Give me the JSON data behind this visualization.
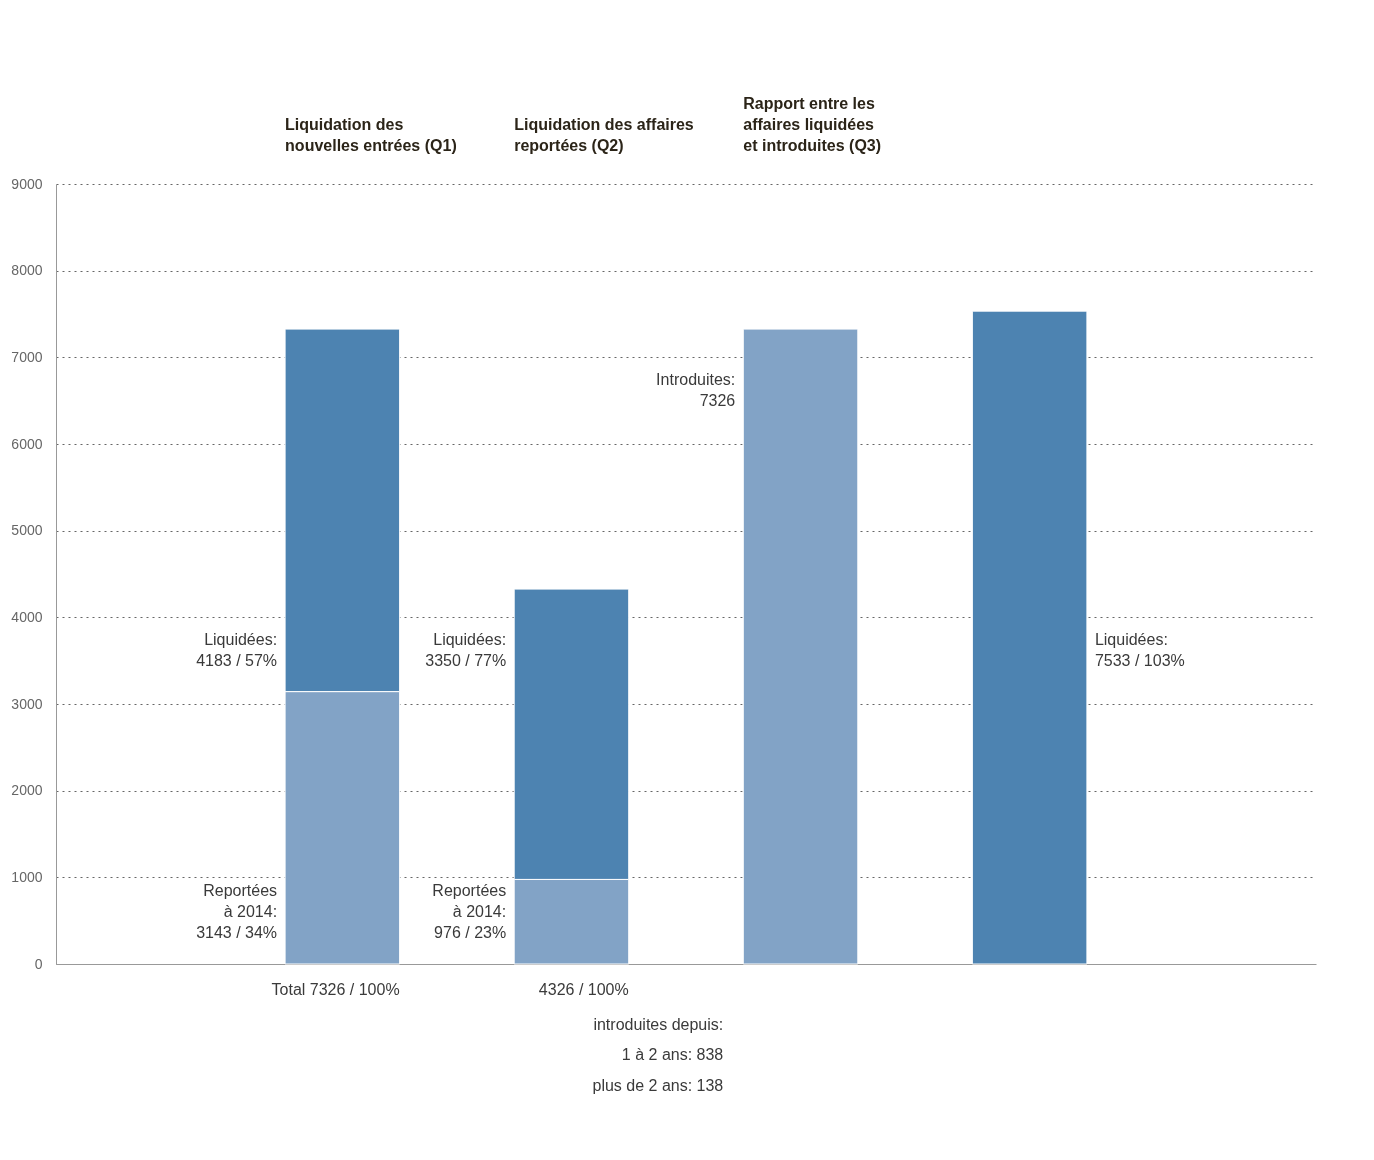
{
  "chart_data": {
    "type": "bar",
    "categories": [
      null,
      null,
      null,
      null
    ],
    "stacked": true,
    "tick_labels": "y",
    "grid": "y",
    "ylim": [
      0,
      9000
    ],
    "yticks": [
      0,
      1000,
      2000,
      3000,
      4000,
      5000,
      6000,
      7000,
      8000,
      9000
    ],
    "series": [
      {
        "color": "#82a3c6",
        "values": [
          3143,
          976,
          7326,
          null
        ]
      },
      {
        "color": "#4d83b1",
        "values": [
          4183,
          3350,
          null,
          7533
        ]
      }
    ],
    "annotations": [
      "Liquidation des nouvelles entrées (Q1)",
      "Liquidation des affaires reportées (Q2)",
      "Rapport entre les affaires liquidées et introduites (Q3)",
      "Liquidées: 4183 / 57%",
      "Reportées à 2014: 3143 / 34%",
      "Total 7326 / 100%",
      "Liquidées: 3350 / 77%",
      "Reportées à 2014: 976 / 23%",
      "4326 / 100%",
      "introduites depuis:",
      "1 à 2 ans: 838",
      "plus de 2 ans: 138",
      "Introduites: 7326",
      "Liquidées: 7533 / 103%"
    ]
  }
}
